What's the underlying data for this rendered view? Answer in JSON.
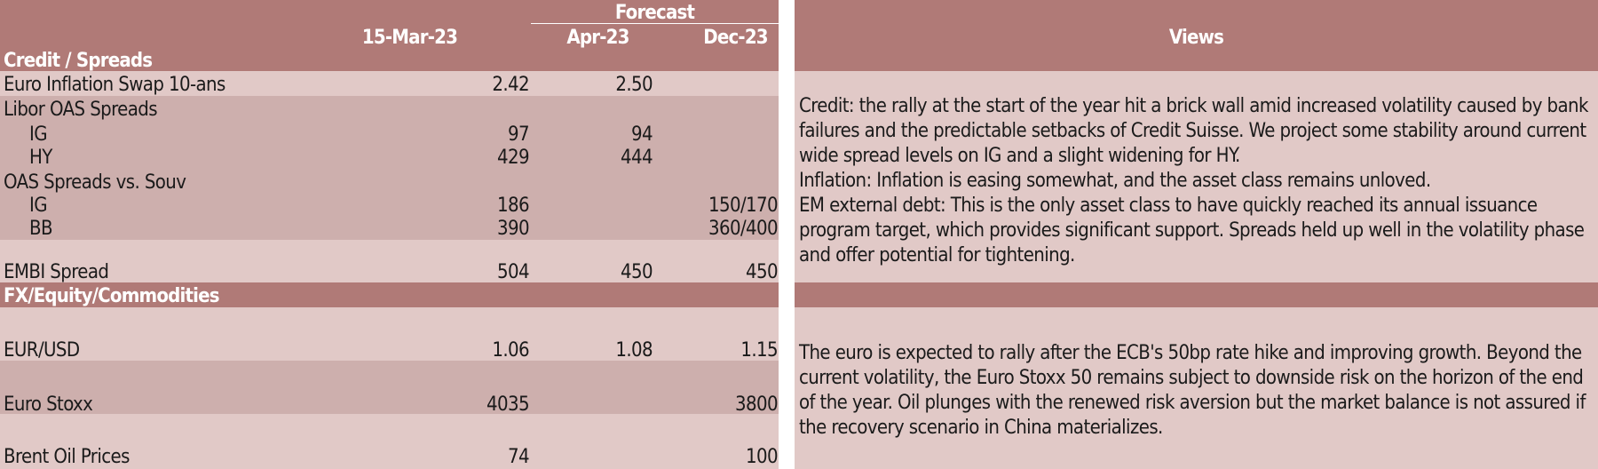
{
  "left_table": {
    "forecast_label": "Forecast",
    "col_headers": {
      "current": "15-Mar-23",
      "apr": "Apr-23",
      "dec": "Dec-23"
    },
    "section_credit": "Credit / Spreads",
    "rows": [
      {
        "label": "Euro Inflation Swap 10-ans",
        "current": "2.42",
        "apr": "2.50",
        "dec": ""
      },
      {
        "label": "Libor OAS Spreads",
        "current": "",
        "apr": "",
        "dec": ""
      },
      {
        "label": "IG",
        "current": "97",
        "apr": "94",
        "dec": ""
      },
      {
        "label": "HY",
        "current": "429",
        "apr": "444",
        "dec": ""
      },
      {
        "label": "OAS Spreads vs. Souv",
        "current": "",
        "apr": "",
        "dec": ""
      },
      {
        "label": "IG",
        "current": "186",
        "apr": "",
        "dec": "150/170"
      },
      {
        "label": "BB",
        "current": "390",
        "apr": "",
        "dec": "360/400"
      },
      {
        "label": "EMBI Spread",
        "current": "504",
        "apr": "450",
        "dec": "450"
      }
    ],
    "section_fx": "FX/Equity/Commodities",
    "fx_rows": [
      {
        "label": "EUR/USD",
        "current": "1.06",
        "apr": "1.08",
        "dec": "1.15"
      },
      {
        "label": "Euro Stoxx",
        "current": "4035",
        "apr": "",
        "dec": "3800"
      },
      {
        "label": "Brent Oil Prices",
        "current": "74",
        "apr": "",
        "dec": "100"
      }
    ]
  },
  "views": {
    "header": "Views",
    "credit_paragraphs": [
      "Credit: the rally at the start of the year hit a brick wall amid increased volatility caused by bank failures and the predictable setbacks of Credit Suisse. We project some stability around current wide spread levels on IG and a slight widening for HY.",
      "Inflation: Inflation is easing somewhat, and the asset class remains unloved.",
      "EM external debt: This is the only asset class to have quickly reached its annual issuance program target, which provides significant support. Spreads held up well in the volatility phase and offer potential for tightening."
    ],
    "fx_paragraph": "The euro is expected to rally after the ECB's 50bp rate hike and improving growth. Beyond the current volatility, the Euro Stoxx 50 remains subject to downside risk on the horizon of the end of the year. Oil plunges with the renewed risk aversion but the market balance is not assured if the recovery scenario in China materializes."
  },
  "colors": {
    "dark": "#b07a77",
    "mid": "#cdafad",
    "light": "#e1c9c7"
  }
}
